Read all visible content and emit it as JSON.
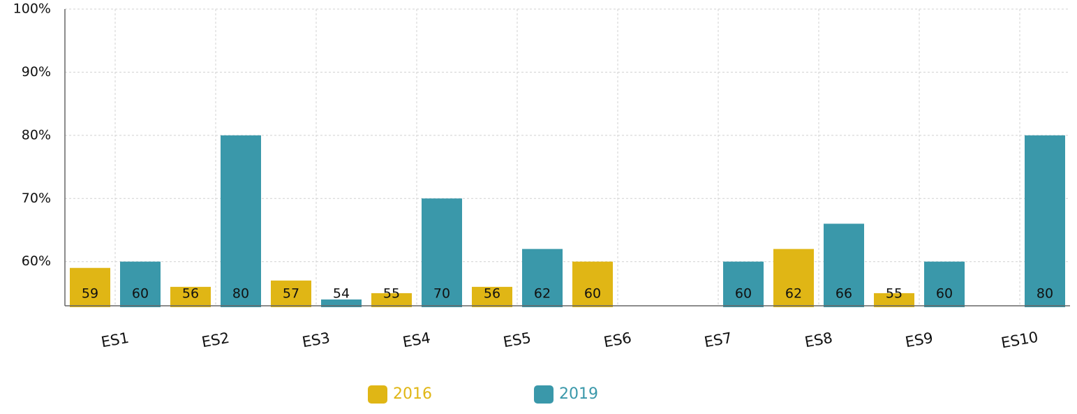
{
  "chart_data": {
    "type": "bar",
    "categories": [
      "ES1",
      "ES2",
      "ES3",
      "ES4",
      "ES5",
      "ES6",
      "ES7",
      "ES8",
      "ES9",
      "ES10"
    ],
    "series": [
      {
        "name": "2016",
        "color": "#e0b615",
        "values": [
          59,
          56,
          57,
          55,
          56,
          60,
          null,
          62,
          55,
          null
        ]
      },
      {
        "name": "2019",
        "color": "#3a98aa",
        "values": [
          60,
          80,
          54,
          70,
          62,
          null,
          60,
          66,
          60,
          80
        ]
      }
    ],
    "ylim": [
      53,
      100
    ],
    "yticks": [
      {
        "value": 60,
        "label": "60%"
      },
      {
        "value": 70,
        "label": "70%"
      },
      {
        "value": 80,
        "label": "80%"
      },
      {
        "value": 90,
        "label": "90%"
      },
      {
        "value": 100,
        "label": "100%"
      }
    ],
    "grid": true,
    "legend": "bottom"
  }
}
